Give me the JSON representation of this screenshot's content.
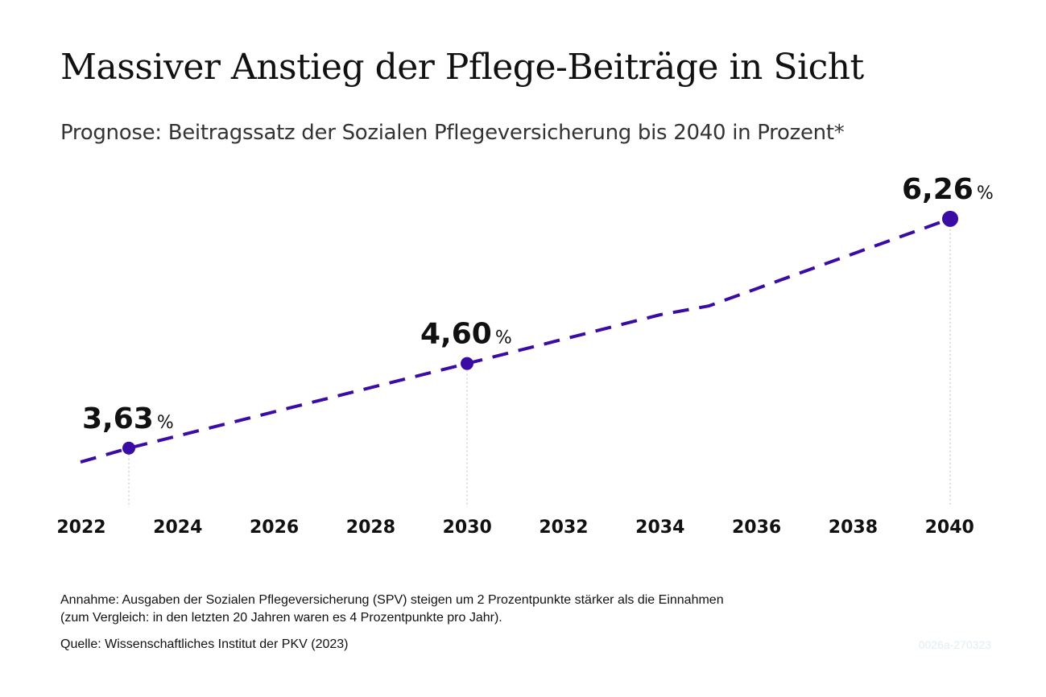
{
  "title": "Massiver Anstieg der Pflege-Beiträge in Sicht",
  "subtitle": "Prognose: Beitragssatz der Sozialen Pflegeversicherung bis 2040 in Prozent*",
  "footnote": {
    "line1": "Annahme: Ausgaben der Sozialen Pflegeversicherung (SPV) steigen um 2 Prozentpunkte stärker als die Einnahmen",
    "line2": "(zum Vergleich: in den letzten 20 Jahren waren es 4 Prozentpunkte pro Jahr)."
  },
  "source": "Quelle: Wissenschaftliches Institut der PKV (2023)",
  "graphic_code": "0026a-270323",
  "colors": {
    "line": "#3a0ca3",
    "text": "#111111",
    "guide": "#bbbbbb"
  },
  "chart_data": {
    "type": "line",
    "title": "Massiver Anstieg der Pflege-Beiträge in Sicht",
    "subtitle": "Prognose: Beitragssatz der Sozialen Pflegeversicherung bis 2040 in Prozent*",
    "xlabel": "",
    "ylabel": "",
    "x_ticks": [
      "2022",
      "2024",
      "2026",
      "2028",
      "2030",
      "2032",
      "2034",
      "2036",
      "2038",
      "2040"
    ],
    "xlim": [
      2022,
      2040
    ],
    "ylim": [
      3.0,
      6.6
    ],
    "grid": false,
    "legend": "none",
    "line_style": "dashed",
    "series": [
      {
        "values": [
          {
            "x": 2022,
            "y": 3.47
          },
          {
            "x": 2023,
            "y": 3.63
          },
          {
            "x": 2030,
            "y": 4.6
          },
          {
            "x": 2034,
            "y": 5.16
          },
          {
            "x": 2035,
            "y": 5.26
          },
          {
            "x": 2040,
            "y": 6.26
          }
        ]
      }
    ],
    "highlighted_points": [
      {
        "x": 2023,
        "y": 3.63,
        "label": "3,63",
        "unit": "%"
      },
      {
        "x": 2030,
        "y": 4.6,
        "label": "4,60",
        "unit": "%"
      },
      {
        "x": 2040,
        "y": 6.26,
        "label": "6,26",
        "unit": "%"
      }
    ]
  }
}
